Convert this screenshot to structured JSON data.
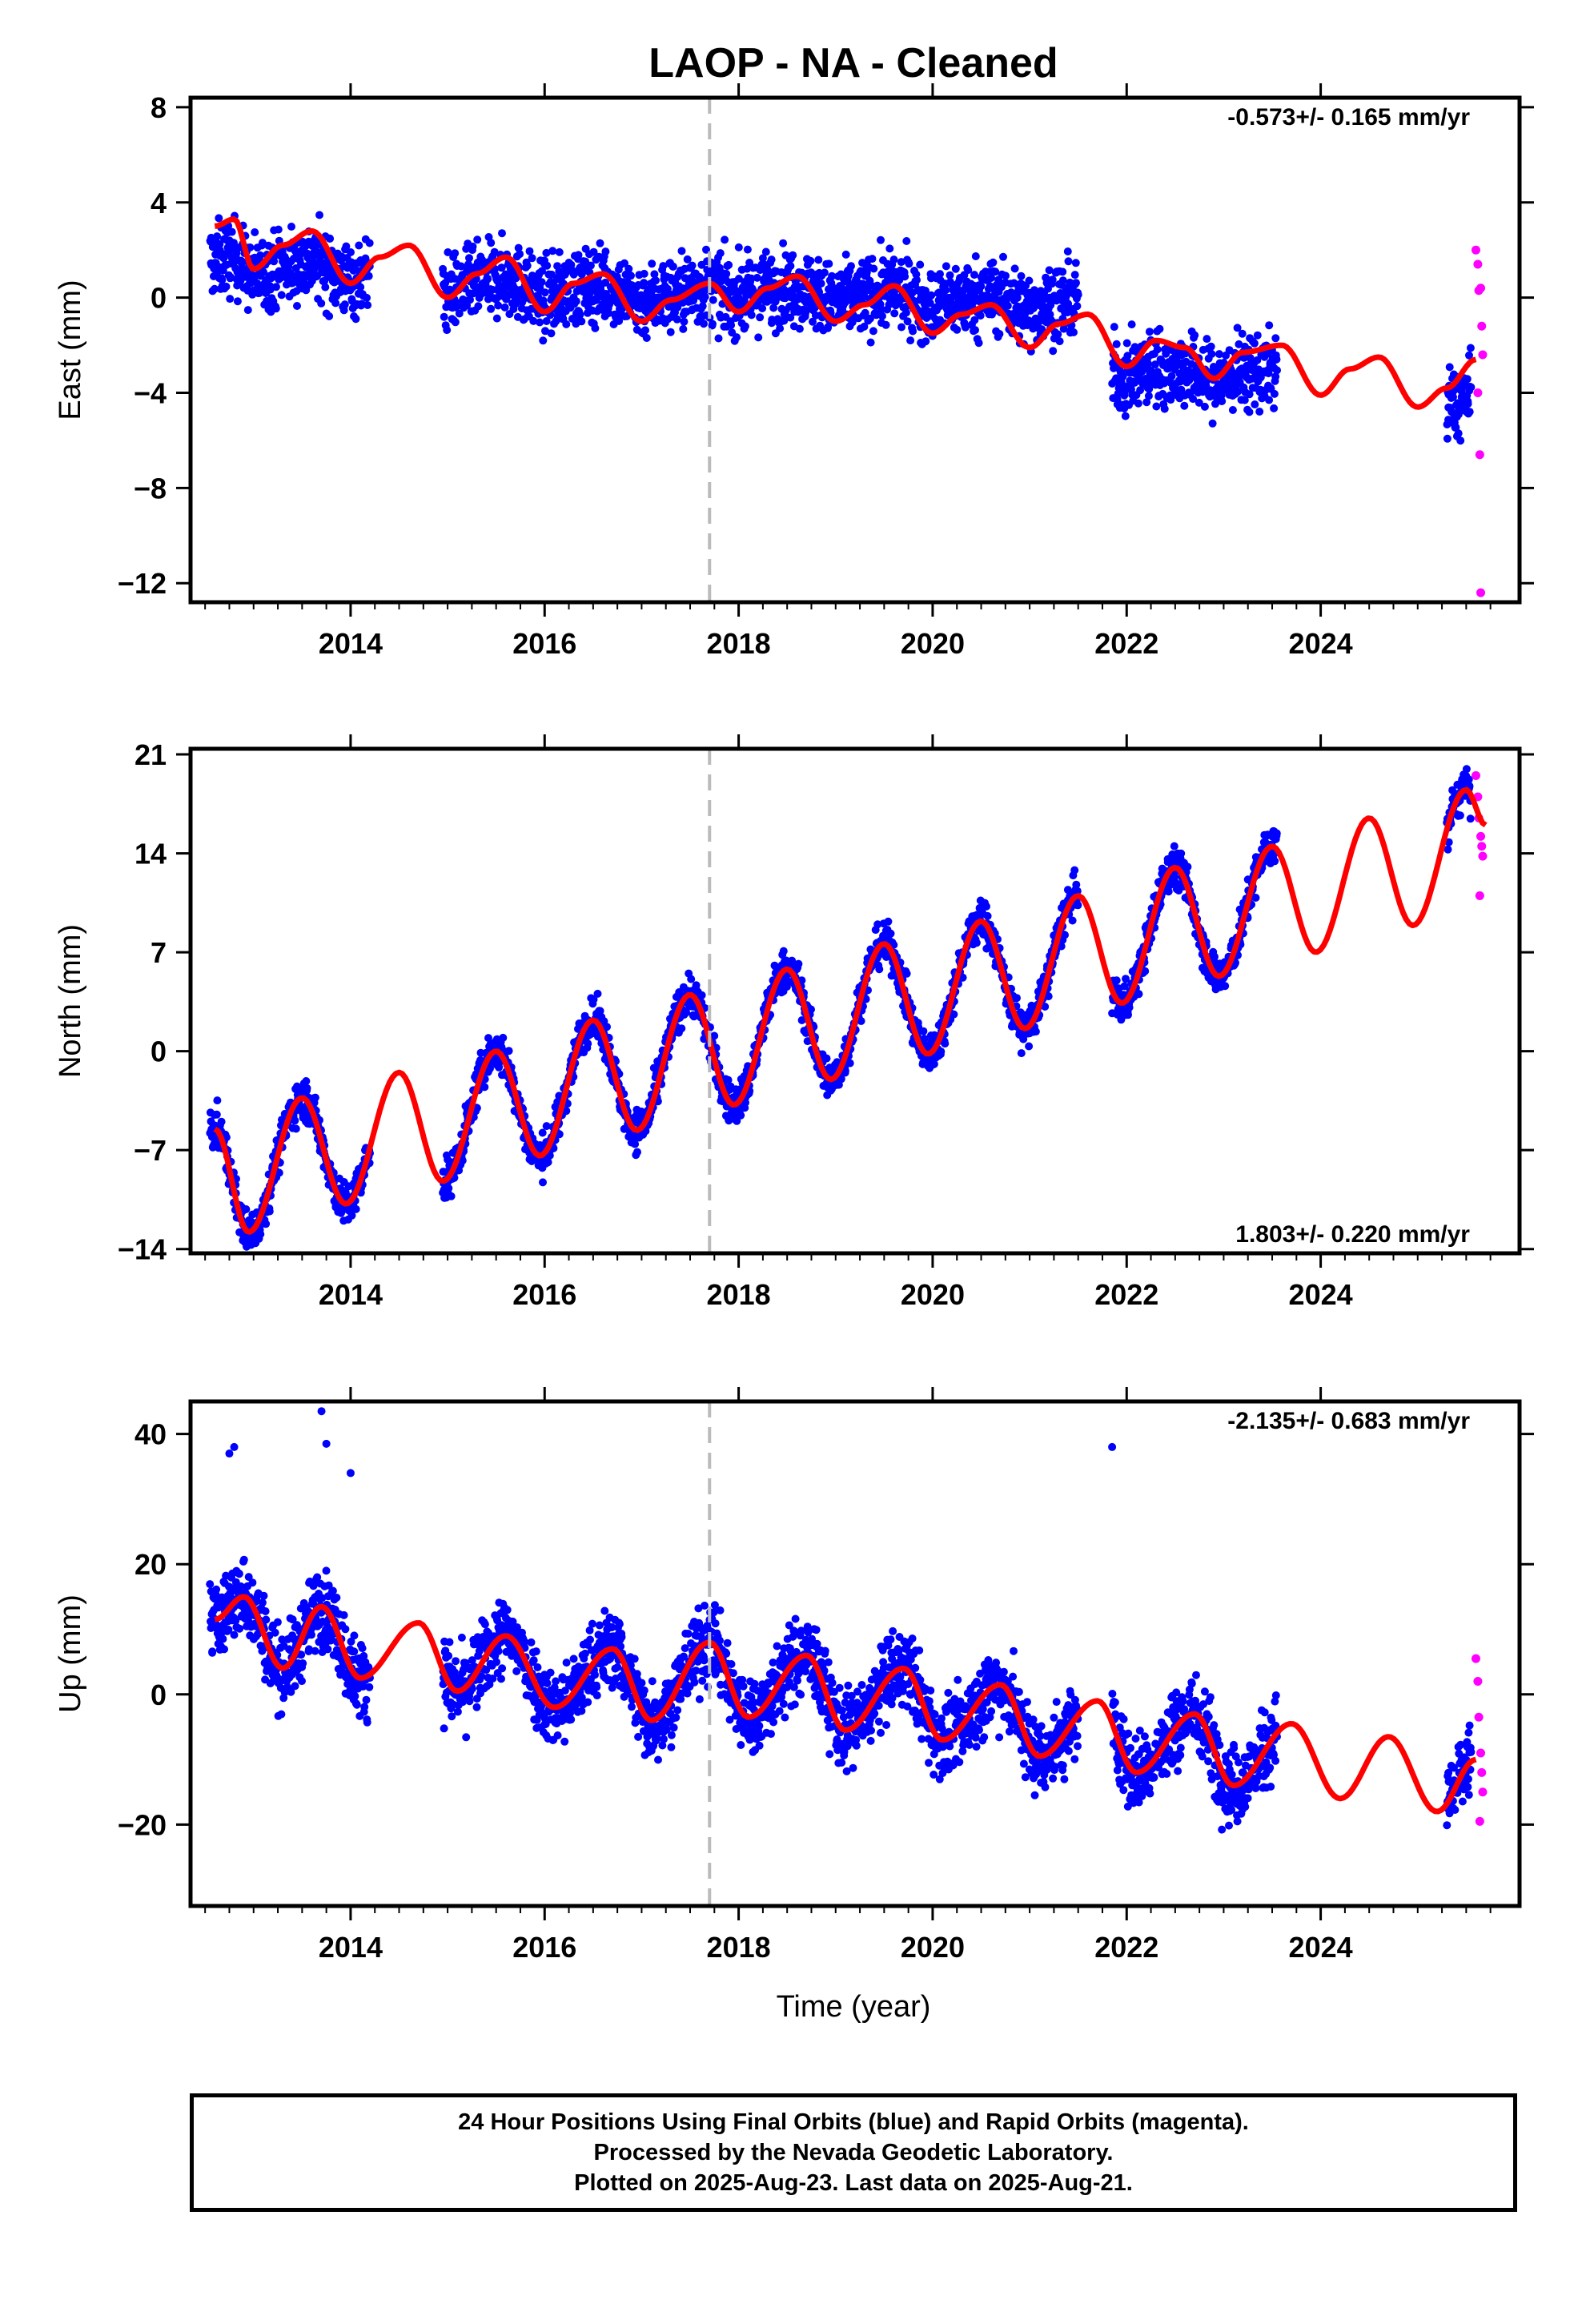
{
  "title": "LAOP  - NA - Cleaned",
  "x_axis_label": "Time (year)",
  "footer": {
    "line1": "24 Hour Positions Using Final Orbits (blue) and Rapid Orbits (magenta).",
    "line2": "Processed by the Nevada Geodetic Laboratory.",
    "line3": "Plotted on 2025-Aug-23. Last data on 2025-Aug-21."
  },
  "colors": {
    "final_orbits": "#0000ff",
    "rapid_orbits": "#ff00ff",
    "model_fit": "#ff0000",
    "event_line": "#bbbbbb"
  },
  "chart_data": [
    {
      "type": "scatter",
      "panel": "east",
      "ylabel": "East (mm)",
      "rate_label": "-0.573+/- 0.165 mm/yr",
      "rate_position": "top-right",
      "xlim": [
        2012.35,
        2026.05
      ],
      "ylim": [
        -12.8,
        8.4
      ],
      "xticks": [
        2014,
        2016,
        2018,
        2020,
        2022,
        2024
      ],
      "xtick_labels": [
        "2014",
        "2016",
        "2018",
        "2020",
        "2022",
        "2024"
      ],
      "yticks": [
        8,
        4,
        0,
        -4,
        -8,
        -12
      ],
      "ytick_labels": [
        "8",
        "4",
        "0",
        "−4",
        "−8",
        "−12"
      ],
      "event_line_x": 2017.7,
      "grid": false,
      "trend": {
        "type": "line",
        "color": "#ff0000",
        "x": [
          2012.6,
          2012.8,
          2013.0,
          2013.3,
          2013.6,
          2014.0,
          2014.3,
          2014.6,
          2015.0,
          2015.3,
          2015.6,
          2016.0,
          2016.3,
          2016.6,
          2017.0,
          2017.3,
          2017.7,
          2018.0,
          2018.3,
          2018.6,
          2019.0,
          2019.3,
          2019.6,
          2020.0,
          2020.3,
          2020.6,
          2021.0,
          2021.3,
          2021.6,
          2022.0,
          2022.3,
          2022.6,
          2022.9,
          2023.2,
          2023.6,
          2024.0,
          2024.3,
          2024.6,
          2025.0,
          2025.3,
          2025.6
        ],
        "y": [
          3.0,
          3.3,
          1.2,
          2.2,
          2.8,
          0.6,
          1.7,
          2.2,
          0.0,
          1.0,
          1.7,
          -0.6,
          0.6,
          1.0,
          -1.0,
          -0.1,
          0.6,
          -0.6,
          0.4,
          0.9,
          -1.0,
          -0.3,
          0.5,
          -1.5,
          -0.7,
          -0.3,
          -2.1,
          -1.1,
          -0.7,
          -2.9,
          -1.8,
          -2.1,
          -3.4,
          -2.3,
          -2.0,
          -4.1,
          -3.0,
          -2.5,
          -4.6,
          -3.8,
          -2.6
        ]
      },
      "final_points": {
        "segments": [
          [
            2012.55,
            2014.2
          ],
          [
            2014.95,
            2021.5
          ],
          [
            2021.85,
            2023.55
          ],
          [
            2025.3,
            2025.55
          ]
        ],
        "mean_offset_mm": [
          0.8,
          0.3,
          -3.6,
          -5.0
        ],
        "scatter_sd_mm": 1.3,
        "count": 2600
      },
      "rapid_points": {
        "x": [
          2025.6,
          2025.62,
          2025.63,
          2025.65,
          2025.66,
          2025.67,
          2025.62,
          2025.64,
          2025.65
        ],
        "y": [
          2.0,
          1.4,
          0.3,
          0.4,
          -1.2,
          -2.4,
          -4.0,
          -6.6,
          -12.4
        ]
      }
    },
    {
      "type": "scatter",
      "panel": "north",
      "ylabel": "North (mm)",
      "rate_label": "1.803+/- 0.220 mm/yr",
      "rate_position": "bottom-right",
      "xlim": [
        2012.35,
        2026.05
      ],
      "ylim": [
        -14.3,
        21.4
      ],
      "xticks": [
        2014,
        2016,
        2018,
        2020,
        2022,
        2024
      ],
      "xtick_labels": [
        "2014",
        "2016",
        "2018",
        "2020",
        "2022",
        "2024"
      ],
      "yticks": [
        21,
        14,
        7,
        0,
        -7,
        -14
      ],
      "ytick_labels": [
        "21",
        "14",
        "7",
        "0",
        "−7",
        "−14"
      ],
      "event_line_x": 2017.7,
      "grid": false,
      "trend": {
        "type": "line",
        "color": "#ff0000",
        "x": [
          2012.6,
          2012.95,
          2013.5,
          2013.95,
          2014.5,
          2014.95,
          2015.5,
          2015.95,
          2016.5,
          2016.95,
          2017.5,
          2017.95,
          2018.5,
          2018.95,
          2019.5,
          2019.95,
          2020.5,
          2020.95,
          2021.5,
          2021.95,
          2022.5,
          2022.95,
          2023.5,
          2023.95,
          2024.5,
          2024.95,
          2025.5,
          2025.7
        ],
        "y": [
          -5.5,
          -12.8,
          -3.3,
          -10.8,
          -1.5,
          -9.2,
          0.0,
          -7.4,
          2.2,
          -5.6,
          4.0,
          -3.8,
          5.8,
          -2.0,
          7.6,
          -0.2,
          9.2,
          1.6,
          11.0,
          3.4,
          13.0,
          5.3,
          14.5,
          7.0,
          16.5,
          8.9,
          18.5,
          16.0
        ]
      },
      "final_points": {
        "segments": [
          [
            2012.55,
            2014.2
          ],
          [
            2014.95,
            2021.5
          ],
          [
            2021.85,
            2023.55
          ],
          [
            2025.3,
            2025.55
          ]
        ],
        "scatter_sd_mm": 1.2,
        "count": 2600
      },
      "rapid_points": {
        "x": [
          2025.6,
          2025.62,
          2025.63,
          2025.65,
          2025.66,
          2025.67,
          2025.64
        ],
        "y": [
          19.5,
          18.0,
          16.5,
          15.2,
          14.5,
          13.8,
          11.0
        ]
      }
    },
    {
      "type": "scatter",
      "panel": "up",
      "ylabel": "Up (mm)",
      "rate_label": "-2.135+/- 0.683 mm/yr",
      "rate_position": "top-right",
      "xlim": [
        2012.35,
        2026.05
      ],
      "ylim": [
        -32.5,
        45.0
      ],
      "xticks": [
        2014,
        2016,
        2018,
        2020,
        2022,
        2024
      ],
      "xtick_labels": [
        "2014",
        "2016",
        "2018",
        "2020",
        "2022",
        "2024"
      ],
      "yticks": [
        40,
        20,
        0,
        -20
      ],
      "ytick_labels": [
        "40",
        "20",
        "0",
        "−20"
      ],
      "event_line_x": 2017.7,
      "grid": false,
      "trend": {
        "type": "line",
        "color": "#ff0000",
        "x": [
          2012.6,
          2012.9,
          2013.3,
          2013.7,
          2014.1,
          2014.7,
          2015.1,
          2015.6,
          2016.1,
          2016.7,
          2017.1,
          2017.7,
          2018.1,
          2018.7,
          2019.1,
          2019.7,
          2020.1,
          2020.7,
          2021.1,
          2021.7,
          2022.1,
          2022.7,
          2023.1,
          2023.7,
          2024.2,
          2024.7,
          2025.2,
          2025.6
        ],
        "y": [
          11.5,
          15.0,
          4.0,
          13.5,
          2.5,
          11.0,
          0.5,
          9.0,
          -2.0,
          7.0,
          -4.0,
          8.0,
          -3.5,
          6.0,
          -5.5,
          4.0,
          -7.0,
          1.5,
          -9.5,
          -1.0,
          -12.0,
          -3.0,
          -14.0,
          -4.5,
          -16.0,
          -6.5,
          -18.0,
          -10.0
        ]
      },
      "final_points": {
        "segments": [
          [
            2012.55,
            2014.2
          ],
          [
            2014.95,
            2021.5
          ],
          [
            2021.85,
            2023.55
          ],
          [
            2025.3,
            2025.55
          ]
        ],
        "scatter_sd_mm": 5.0,
        "count": 2600,
        "outliers": {
          "x": [
            2012.75,
            2012.8,
            2013.7,
            2013.75,
            2014.0,
            2021.85
          ],
          "y": [
            37.0,
            38.0,
            43.5,
            38.5,
            34.0,
            38.0
          ]
        }
      },
      "rapid_points": {
        "x": [
          2025.6,
          2025.62,
          2025.63,
          2025.65,
          2025.66,
          2025.67,
          2025.64
        ],
        "y": [
          5.5,
          2.0,
          -3.5,
          -9.0,
          -12.0,
          -15.0,
          -19.5
        ]
      }
    }
  ]
}
